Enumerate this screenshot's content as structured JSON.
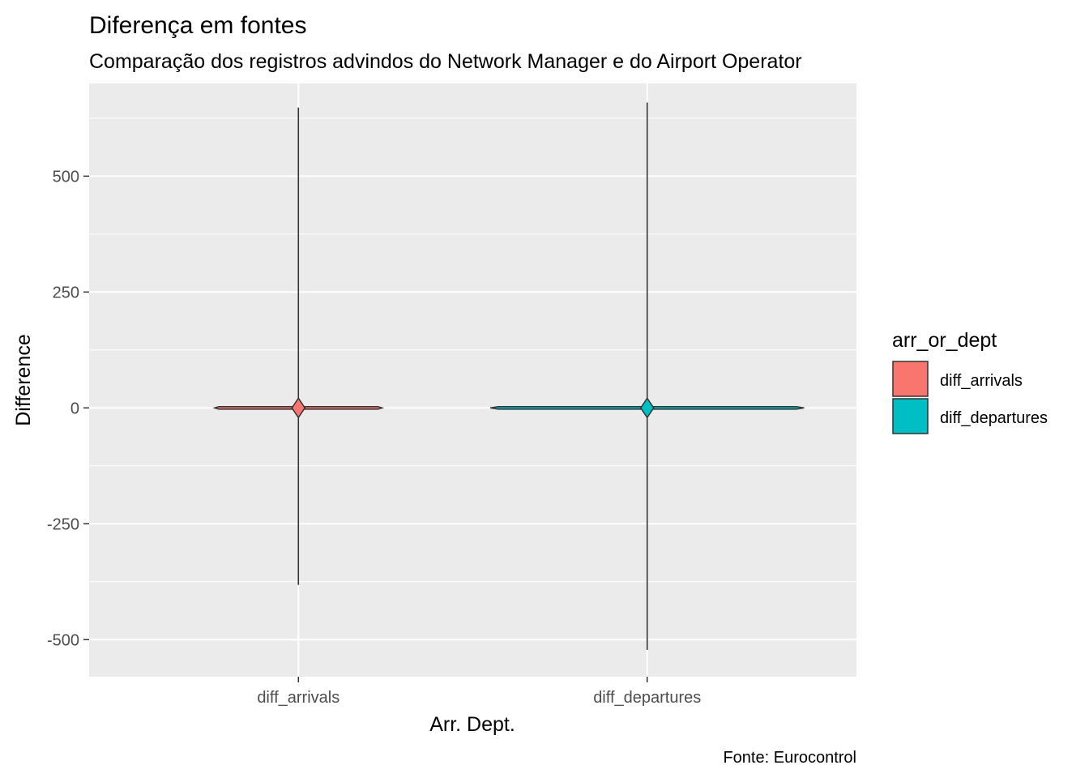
{
  "chart_data": {
    "type": "violin",
    "title": "Diferença em fontes",
    "subtitle": "Comparação dos registros advindos do Network Manager e do Airport Operator",
    "xlabel": "Arr. Dept.",
    "ylabel": "Difference",
    "caption": "Fonte: Eurocontrol",
    "ylim": [
      -580,
      700
    ],
    "yticks": [
      -500,
      -250,
      0,
      250,
      500
    ],
    "grid": true,
    "categories": [
      "diff_arrivals",
      "diff_departures"
    ],
    "series": [
      {
        "category": "diff_arrivals",
        "color": "#F8766D",
        "min": -382,
        "max": 648,
        "median": 0,
        "relative_width": 0.48
      },
      {
        "category": "diff_departures",
        "color": "#00BFC4",
        "min": -522,
        "max": 659,
        "median": 0,
        "relative_width": 0.9
      }
    ],
    "legend": {
      "title": "arr_or_dept",
      "position": "right",
      "items": [
        {
          "label": "diff_arrivals",
          "color": "#F8766D"
        },
        {
          "label": "diff_departures",
          "color": "#00BFC4"
        }
      ]
    }
  }
}
